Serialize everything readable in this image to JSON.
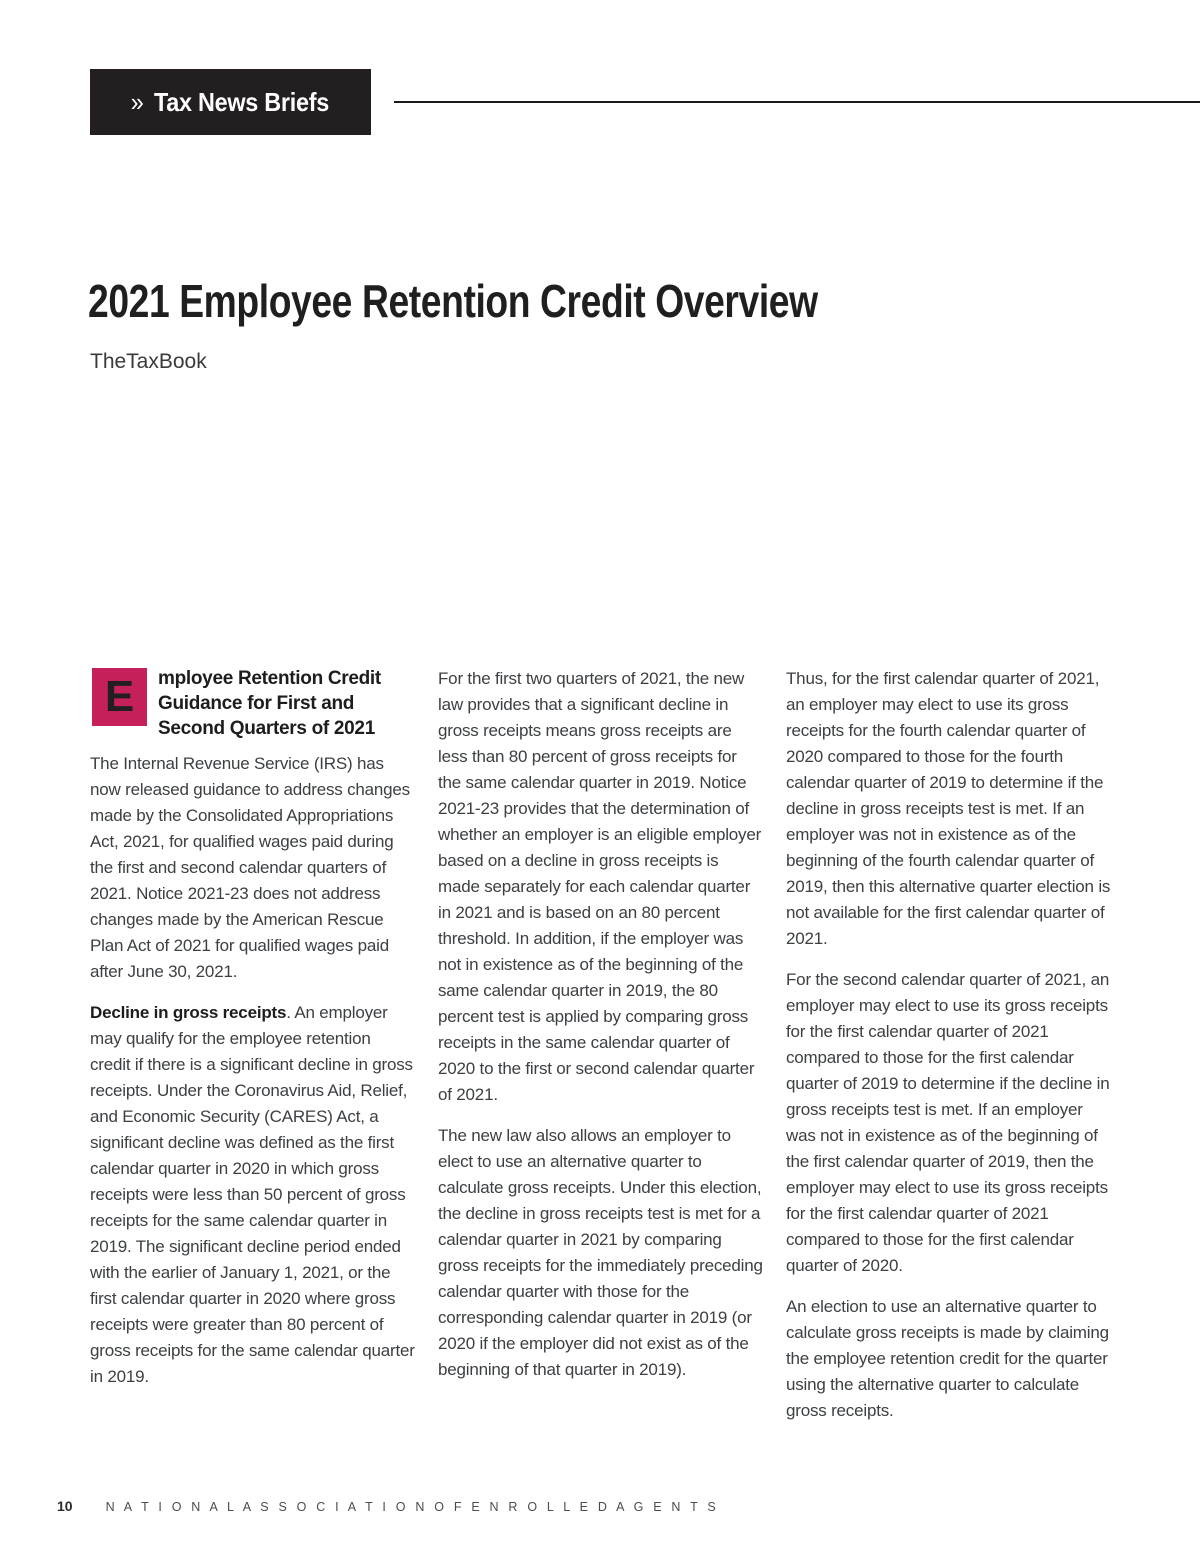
{
  "header": {
    "badge_icon": "»",
    "badge_label": "Tax News Briefs"
  },
  "article": {
    "title": "2021 Employee Retention Credit Overview",
    "byline": "TheTaxBook"
  },
  "body": {
    "col1": {
      "dropcap": "E",
      "heading": "mployee Retention Credit Guidance for First and Second Quarters of 2021",
      "para1": "The Internal Revenue Service (IRS) has now released guidance to address changes made by the Consolidated Appropriations Act, 2021, for qualified wages paid during the first and second calendar quarters of 2021. Notice 2021-23 does not address changes made by the American Rescue Plan Act of 2021 for qualified wages paid after June 30, 2021.",
      "para2_lead": "Decline in gross receipts",
      "para2_rest": ". An employer may qualify for the employee retention credit if there is a significant decline in gross receipts. Under the Coronavirus Aid, Relief, and Economic Security (CARES) Act, a significant decline was defined as the first calendar quarter in 2020 in which gross receipts were less than 50 percent of gross receipts for the same calendar quarter in 2019. The significant decline period ended with the earlier of January 1, 2021, or the first calendar quarter in 2020 where gross receipts were greater than 80 percent of gross receipts for the same calendar quarter in 2019."
    },
    "col2": {
      "para1": "For the first two quarters of 2021, the new law provides that a significant decline in gross receipts means gross receipts are less than 80 percent of gross receipts for the same calendar quarter in 2019. Notice 2021-23 provides that the determination of whether an employer is an eligible employer based on a decline in gross receipts is made separately for each calendar quarter in 2021 and is based on an 80 percent threshold. In addition, if the employer was not in existence as of the beginning of the same calendar quarter in 2019, the 80 percent test is applied by comparing gross receipts in the same calendar quarter of 2020 to the first or second calendar quarter of 2021.",
      "para2": "The new law also allows an employer to elect to use an alternative quarter to calculate gross receipts. Under this election, the decline in gross receipts test is met for a calendar quarter in 2021 by comparing gross receipts for the immediately preceding calendar quarter with those for the corresponding calendar quarter in 2019 (or 2020 if the employer did not exist as of the beginning of that quarter in 2019)."
    },
    "col3": {
      "para1": "Thus, for the first calendar quarter of 2021, an employer may elect to use its gross receipts for the fourth calendar quarter of 2020 compared to those for the fourth calendar quarter of 2019 to determine if the decline in gross receipts test is met. If an employer was not in existence as of the beginning of the fourth calendar quarter of 2019, then this alternative quarter election is not available for the first calendar quarter of 2021.",
      "para2": "For the second calendar quarter of 2021, an employer may elect to use its gross receipts for the first calendar quarter of 2021 compared to those for the first calendar quarter of 2019 to determine if the decline in gross receipts test is met. If an employer was not in existence as of the beginning of the first calendar quarter of 2019, then the employer may elect to use its gross receipts for the first calendar quarter of 2021 compared to those for the first calendar quarter of 2020.",
      "para3": "An election to use an alternative quarter to calculate gross receipts is made by claiming the employee retention credit for the quarter using the alternative quarter to calculate gross receipts."
    }
  },
  "footer": {
    "page_number": "10",
    "organization": "N A T I O N A L   A S S O C I A T I O N   O F   E N R O L L E D   A G E N T S"
  },
  "colors": {
    "accent_pink": "#C6205C",
    "badge_black": "#231F20",
    "body_text": "#3C4043"
  }
}
